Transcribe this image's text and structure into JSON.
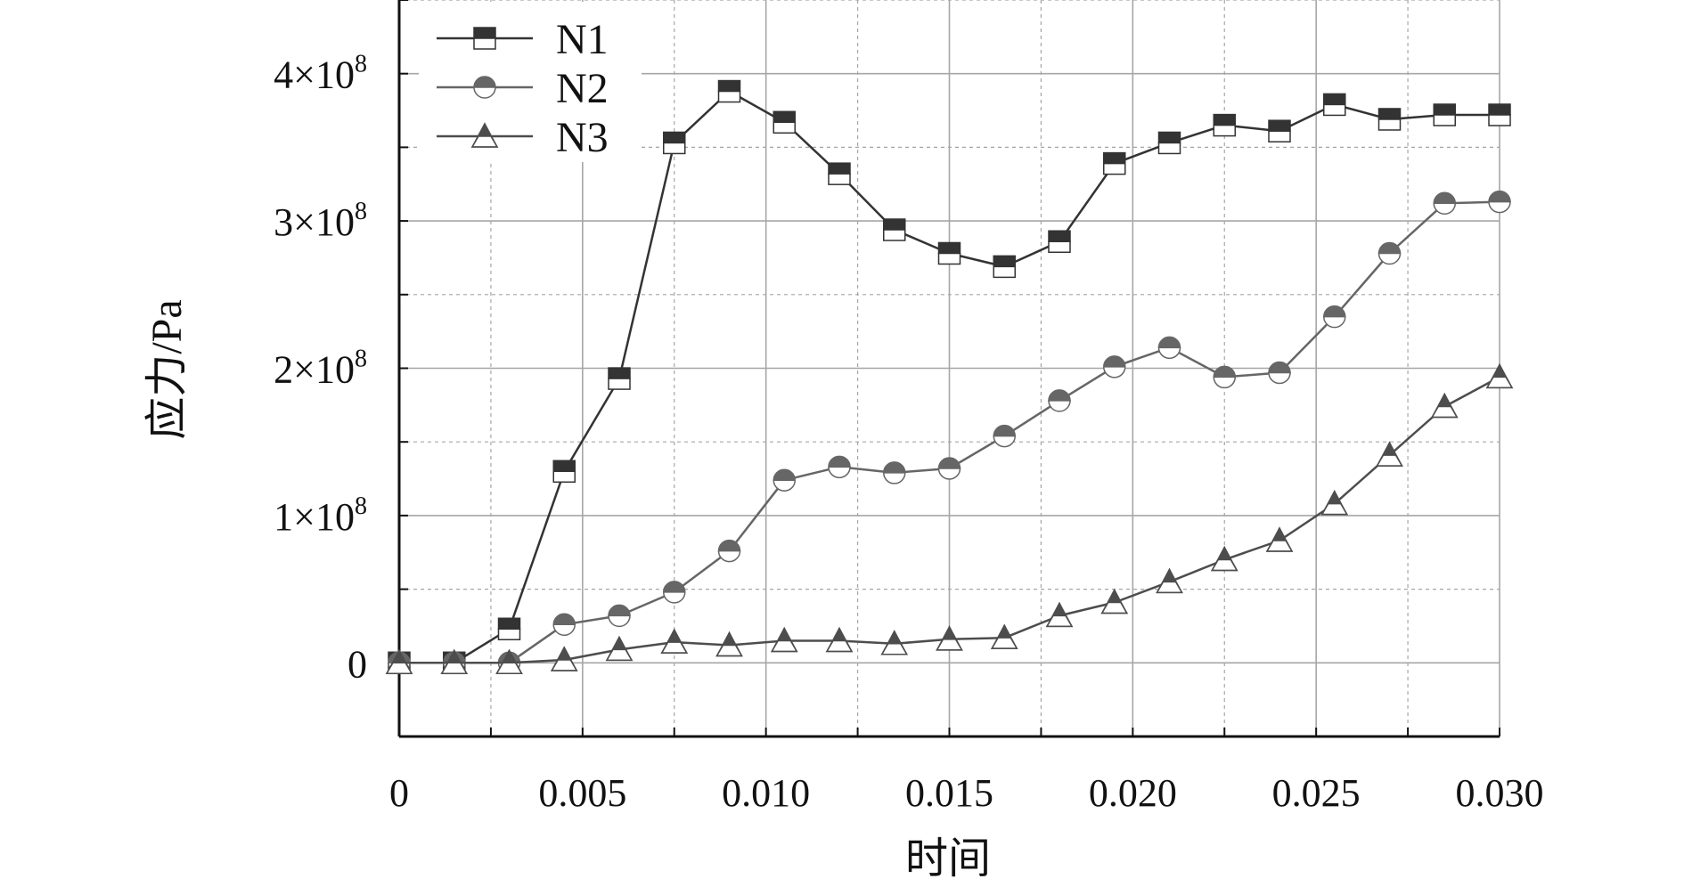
{
  "chart_data": {
    "type": "line",
    "xlabel": "时间",
    "ylabel": "应力/Pa",
    "xlim": [
      0,
      0.03
    ],
    "ylim": [
      -50000000,
      450000000
    ],
    "x_ticks": [
      0,
      0.005,
      0.01,
      0.015,
      0.02,
      0.025,
      0.03
    ],
    "x_tick_labels": [
      "0",
      "0.005",
      "0.010",
      "0.015",
      "0.020",
      "0.025",
      "0.030"
    ],
    "y_ticks": [
      0,
      100000000,
      200000000,
      300000000,
      400000000
    ],
    "y_tick_labels": [
      {
        "base": "0",
        "exp": ""
      },
      {
        "base": "1×10",
        "exp": "8"
      },
      {
        "base": "2×10",
        "exp": "8"
      },
      {
        "base": "3×10",
        "exp": "8"
      },
      {
        "base": "4×10",
        "exp": "8"
      }
    ],
    "grid": true,
    "legend_position": "top-left",
    "x": [
      0,
      0.0015,
      0.003,
      0.0045,
      0.006,
      0.0075,
      0.009,
      0.0105,
      0.012,
      0.0135,
      0.015,
      0.0165,
      0.018,
      0.0195,
      0.021,
      0.0225,
      0.024,
      0.0255,
      0.027,
      0.0285,
      0.03
    ],
    "series": [
      {
        "name": "N1",
        "marker": "square",
        "values": [
          0,
          0,
          23000000,
          130000000,
          193000000,
          353000000,
          388000000,
          367000000,
          332000000,
          294000000,
          278000000,
          269000000,
          286000000,
          339000000,
          353000000,
          365000000,
          361000000,
          379000000,
          369000000,
          372000000,
          372000000
        ]
      },
      {
        "name": "N2",
        "marker": "circle",
        "values": [
          0,
          0,
          0,
          26000000,
          32000000,
          48000000,
          76000000,
          124000000,
          133000000,
          129000000,
          132000000,
          154000000,
          178000000,
          201000000,
          214000000,
          194000000,
          197000000,
          235000000,
          278000000,
          312000000,
          313000000
        ]
      },
      {
        "name": "N3",
        "marker": "triangle",
        "values": [
          0,
          0,
          0,
          2000000,
          9000000,
          14000000,
          12000000,
          15000000,
          15000000,
          13000000,
          16000000,
          17000000,
          32000000,
          41000000,
          55000000,
          70000000,
          83000000,
          108000000,
          141000000,
          174000000,
          194000000
        ]
      }
    ],
    "colors": {
      "N1": "#333333",
      "N2": "#666666",
      "N3": "#4d4d4d",
      "grid": "#a6a6a6",
      "axis": "#111111"
    }
  }
}
